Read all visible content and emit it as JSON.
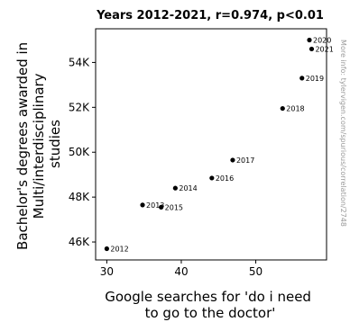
{
  "chart_data": {
    "type": "scatter",
    "title": "Years 2012-2021, r=0.974, p<0.01",
    "xlabel_lines": [
      "Google searches for 'do i need",
      "to go to the doctor'"
    ],
    "ylabel_lines": [
      "Bachelor's degrees awarded in",
      "Multi/interdisciplinary",
      "studies"
    ],
    "xlim": [
      28.5,
      59.5
    ],
    "ylim": [
      45200,
      55500
    ],
    "xticks": [
      30,
      40,
      50
    ],
    "xtick_labels": [
      "30",
      "40",
      "50"
    ],
    "yticks": [
      46000,
      48000,
      50000,
      52000,
      54000
    ],
    "ytick_labels": [
      "46K",
      "48K",
      "50K",
      "52K",
      "54K"
    ],
    "grid": false,
    "points": [
      {
        "x": 30.0,
        "y": 45700,
        "label": "2012"
      },
      {
        "x": 34.8,
        "y": 47650,
        "label": "2013"
      },
      {
        "x": 39.2,
        "y": 48400,
        "label": "2014"
      },
      {
        "x": 37.3,
        "y": 47550,
        "label": "2015"
      },
      {
        "x": 44.1,
        "y": 48850,
        "label": "2016"
      },
      {
        "x": 46.9,
        "y": 49650,
        "label": "2017"
      },
      {
        "x": 53.6,
        "y": 51950,
        "label": "2018"
      },
      {
        "x": 56.2,
        "y": 53300,
        "label": "2019"
      },
      {
        "x": 57.2,
        "y": 55000,
        "label": "2020"
      },
      {
        "x": 57.5,
        "y": 54600,
        "label": "2021"
      }
    ],
    "watermark": "More info: tylervigen.com/spurious/correlation/2748"
  }
}
